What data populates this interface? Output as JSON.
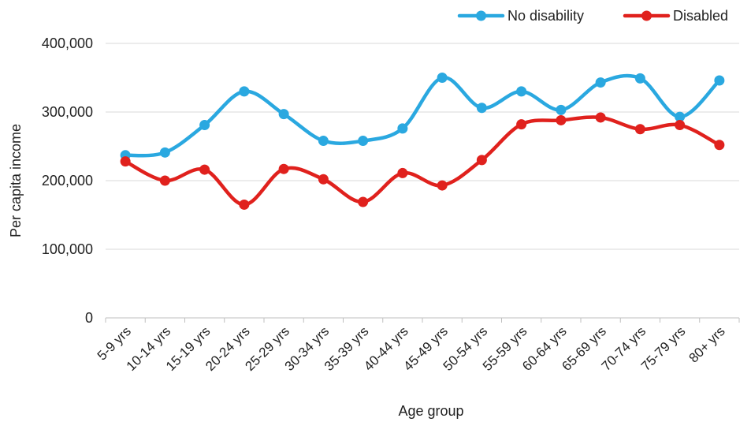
{
  "chart_data": {
    "type": "line",
    "title": "",
    "xlabel": "Age group",
    "ylabel": "Per capita income",
    "categories": [
      "5-9 yrs",
      "10-14 yrs",
      "15-19 yrs",
      "20-24 yrs",
      "25-29 yrs",
      "30-34 yrs",
      "35-39 yrs",
      "40-44 yrs",
      "45-49 yrs",
      "50-54 yrs",
      "55-59 yrs",
      "60-64 yrs",
      "65-69 yrs",
      "70-74 yrs",
      "75-79 yrs",
      "80+ yrs"
    ],
    "ylim": [
      0,
      400000
    ],
    "yticks": [
      0,
      100000,
      200000,
      300000,
      400000
    ],
    "ytick_labels": [
      "0",
      "100,000",
      "200,000",
      "300,000",
      "400,000"
    ],
    "grid": "horizontal",
    "legend_position": "top-right",
    "smooth": true,
    "series": [
      {
        "name": "No disability",
        "color": "#2aa8e0",
        "values": [
          237000,
          241000,
          281000,
          330000,
          297000,
          258000,
          258000,
          276000,
          350000,
          306000,
          330000,
          303000,
          343000,
          349000,
          293000,
          346000
        ]
      },
      {
        "name": "Disabled",
        "color": "#e0211d",
        "values": [
          228000,
          200000,
          216000,
          165000,
          217000,
          202000,
          169000,
          211000,
          193000,
          230000,
          282000,
          288000,
          292000,
          275000,
          281000,
          252000
        ]
      }
    ]
  }
}
